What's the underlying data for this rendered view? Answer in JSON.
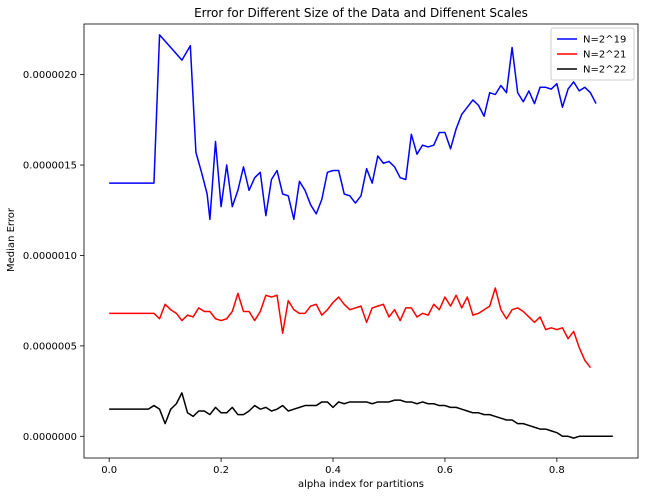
{
  "chart_data": {
    "type": "line",
    "title": "Error for Different Size of the Data and Diffenent Scales",
    "xlabel": "alpha index for partitions",
    "ylabel": "Median Error",
    "xlim": [
      -0.045,
      0.945
    ],
    "ylim": [
      -1.2e-07,
      2.28e-06
    ],
    "xticks": [
      0.0,
      0.2,
      0.4,
      0.6,
      0.8
    ],
    "xtick_labels": [
      "0.0",
      "0.2",
      "0.4",
      "0.6",
      "0.8"
    ],
    "yticks": [
      0.0,
      5e-07,
      1e-06,
      1.5e-06,
      2e-06
    ],
    "ytick_labels": [
      "0.0000000",
      "0.0000005",
      "0.0000010",
      "0.0000015",
      "0.0000020"
    ],
    "grid": false,
    "legend_position": "top-right",
    "series": [
      {
        "name": "N=2^19",
        "color": "#0000ff",
        "x": [
          0.0,
          0.01,
          0.02,
          0.03,
          0.04,
          0.05,
          0.06,
          0.07,
          0.08,
          0.09,
          0.13,
          0.145,
          0.155,
          0.165,
          0.175,
          0.18,
          0.19,
          0.2,
          0.21,
          0.22,
          0.23,
          0.24,
          0.25,
          0.26,
          0.27,
          0.28,
          0.29,
          0.3,
          0.31,
          0.32,
          0.33,
          0.34,
          0.35,
          0.36,
          0.37,
          0.38,
          0.39,
          0.4,
          0.41,
          0.42,
          0.43,
          0.44,
          0.45,
          0.46,
          0.47,
          0.48,
          0.49,
          0.5,
          0.51,
          0.52,
          0.53,
          0.54,
          0.55,
          0.56,
          0.57,
          0.58,
          0.59,
          0.6,
          0.61,
          0.62,
          0.63,
          0.64,
          0.65,
          0.66,
          0.67,
          0.68,
          0.69,
          0.7,
          0.71,
          0.72,
          0.73,
          0.74,
          0.75,
          0.76,
          0.77,
          0.78,
          0.79,
          0.8,
          0.81,
          0.82,
          0.83,
          0.84,
          0.85,
          0.86,
          0.87
        ],
        "y": [
          1.4e-06,
          1.4e-06,
          1.4e-06,
          1.4e-06,
          1.4e-06,
          1.4e-06,
          1.4e-06,
          1.4e-06,
          1.4e-06,
          2.22e-06,
          2.08e-06,
          2.16e-06,
          1.57e-06,
          1.46e-06,
          1.34e-06,
          1.2e-06,
          1.63e-06,
          1.27e-06,
          1.5e-06,
          1.27e-06,
          1.36e-06,
          1.49e-06,
          1.36e-06,
          1.43e-06,
          1.46e-06,
          1.22e-06,
          1.42e-06,
          1.47e-06,
          1.34e-06,
          1.33e-06,
          1.2e-06,
          1.41e-06,
          1.36e-06,
          1.28e-06,
          1.23e-06,
          1.31e-06,
          1.46e-06,
          1.47e-06,
          1.47e-06,
          1.34e-06,
          1.33e-06,
          1.29e-06,
          1.33e-06,
          1.48e-06,
          1.4e-06,
          1.55e-06,
          1.51e-06,
          1.52e-06,
          1.49e-06,
          1.43e-06,
          1.42e-06,
          1.67e-06,
          1.56e-06,
          1.61e-06,
          1.6e-06,
          1.61e-06,
          1.68e-06,
          1.68e-06,
          1.59e-06,
          1.7e-06,
          1.78e-06,
          1.82e-06,
          1.86e-06,
          1.83e-06,
          1.77e-06,
          1.9e-06,
          1.89e-06,
          1.94e-06,
          1.9e-06,
          2.15e-06,
          1.9e-06,
          1.85e-06,
          1.91e-06,
          1.84e-06,
          1.93e-06,
          1.93e-06,
          1.92e-06,
          1.95e-06,
          1.82e-06,
          1.92e-06,
          1.96e-06,
          1.91e-06,
          1.93e-06,
          1.9e-06,
          1.84e-06
        ]
      },
      {
        "name": "N=2^21",
        "color": "#ff0000",
        "x": [
          0.0,
          0.01,
          0.02,
          0.03,
          0.04,
          0.05,
          0.06,
          0.07,
          0.08,
          0.09,
          0.1,
          0.11,
          0.12,
          0.13,
          0.14,
          0.15,
          0.16,
          0.17,
          0.18,
          0.19,
          0.2,
          0.21,
          0.22,
          0.23,
          0.24,
          0.25,
          0.26,
          0.27,
          0.28,
          0.29,
          0.3,
          0.31,
          0.32,
          0.33,
          0.34,
          0.35,
          0.36,
          0.37,
          0.38,
          0.39,
          0.4,
          0.41,
          0.42,
          0.43,
          0.44,
          0.45,
          0.46,
          0.47,
          0.48,
          0.49,
          0.5,
          0.51,
          0.52,
          0.53,
          0.54,
          0.55,
          0.56,
          0.57,
          0.58,
          0.59,
          0.6,
          0.61,
          0.62,
          0.63,
          0.64,
          0.65,
          0.66,
          0.67,
          0.68,
          0.69,
          0.7,
          0.71,
          0.72,
          0.73,
          0.74,
          0.75,
          0.76,
          0.77,
          0.78,
          0.79,
          0.8,
          0.81,
          0.82,
          0.83,
          0.84,
          0.85,
          0.86
        ],
        "y": [
          6.8e-07,
          6.8e-07,
          6.8e-07,
          6.8e-07,
          6.8e-07,
          6.8e-07,
          6.8e-07,
          6.8e-07,
          6.8e-07,
          6.5e-07,
          7.3e-07,
          7e-07,
          6.8e-07,
          6.4e-07,
          6.7e-07,
          6.6e-07,
          7.1e-07,
          6.9e-07,
          6.9e-07,
          6.5e-07,
          6.4e-07,
          6.5e-07,
          6.9e-07,
          7.9e-07,
          6.9e-07,
          6.9e-07,
          6.4e-07,
          6.9e-07,
          7.8e-07,
          7.7e-07,
          7.8e-07,
          5.7e-07,
          7.5e-07,
          7e-07,
          6.8e-07,
          6.8e-07,
          7.2e-07,
          7.3e-07,
          6.7e-07,
          7e-07,
          7.4e-07,
          7.7e-07,
          7.3e-07,
          7e-07,
          7.1e-07,
          7.2e-07,
          6.3e-07,
          7.1e-07,
          7.2e-07,
          7.3e-07,
          6.6e-07,
          7e-07,
          6.4e-07,
          7.1e-07,
          7.1e-07,
          6.6e-07,
          6.8e-07,
          6.7e-07,
          7.3e-07,
          7e-07,
          7.7e-07,
          7.2e-07,
          7.8e-07,
          7.1e-07,
          7.7e-07,
          6.7e-07,
          6.8e-07,
          7e-07,
          7.2e-07,
          8.2e-07,
          7e-07,
          6.5e-07,
          7e-07,
          7.1e-07,
          6.9e-07,
          6.6e-07,
          6.3e-07,
          6.6e-07,
          5.9e-07,
          6e-07,
          5.9e-07,
          6e-07,
          5.4e-07,
          5.8e-07,
          4.9e-07,
          4.2e-07,
          3.8e-07
        ]
      },
      {
        "name": "N=2^22",
        "color": "#000000",
        "x": [
          0.0,
          0.01,
          0.02,
          0.03,
          0.04,
          0.05,
          0.06,
          0.07,
          0.08,
          0.09,
          0.1,
          0.11,
          0.12,
          0.13,
          0.14,
          0.15,
          0.16,
          0.17,
          0.18,
          0.19,
          0.2,
          0.21,
          0.22,
          0.23,
          0.24,
          0.25,
          0.26,
          0.27,
          0.28,
          0.29,
          0.3,
          0.31,
          0.32,
          0.33,
          0.34,
          0.35,
          0.36,
          0.37,
          0.38,
          0.39,
          0.4,
          0.41,
          0.42,
          0.43,
          0.44,
          0.45,
          0.46,
          0.47,
          0.48,
          0.49,
          0.5,
          0.51,
          0.52,
          0.53,
          0.54,
          0.55,
          0.56,
          0.57,
          0.58,
          0.59,
          0.6,
          0.61,
          0.62,
          0.63,
          0.64,
          0.65,
          0.66,
          0.67,
          0.68,
          0.69,
          0.7,
          0.71,
          0.72,
          0.73,
          0.74,
          0.75,
          0.76,
          0.77,
          0.78,
          0.79,
          0.8,
          0.81,
          0.82,
          0.83,
          0.84,
          0.85,
          0.86,
          0.87,
          0.88,
          0.89,
          0.9
        ],
        "y": [
          1.5e-07,
          1.5e-07,
          1.5e-07,
          1.5e-07,
          1.5e-07,
          1.5e-07,
          1.5e-07,
          1.5e-07,
          1.7e-07,
          1.5e-07,
          7e-08,
          1.5e-07,
          1.8e-07,
          2.4e-07,
          1.3e-07,
          1.1e-07,
          1.4e-07,
          1.4e-07,
          1.2e-07,
          1.6e-07,
          1.3e-07,
          1.3e-07,
          1.6e-07,
          1.2e-07,
          1.2e-07,
          1.4e-07,
          1.7e-07,
          1.5e-07,
          1.6e-07,
          1.4e-07,
          1.5e-07,
          1.7e-07,
          1.4e-07,
          1.5e-07,
          1.6e-07,
          1.7e-07,
          1.7e-07,
          1.7e-07,
          1.9e-07,
          1.9e-07,
          1.6e-07,
          1.9e-07,
          1.8e-07,
          1.9e-07,
          1.9e-07,
          1.9e-07,
          1.9e-07,
          1.8e-07,
          1.9e-07,
          1.9e-07,
          1.9e-07,
          2e-07,
          2e-07,
          1.9e-07,
          1.9e-07,
          1.8e-07,
          1.9e-07,
          1.8e-07,
          1.8e-07,
          1.7e-07,
          1.7e-07,
          1.6e-07,
          1.6e-07,
          1.5e-07,
          1.4e-07,
          1.3e-07,
          1.3e-07,
          1.2e-07,
          1.2e-07,
          1.1e-07,
          1e-07,
          9e-08,
          9e-08,
          7e-08,
          7e-08,
          6e-08,
          5e-08,
          4e-08,
          4e-08,
          3e-08,
          2e-08,
          0.0,
          0.0,
          -1e-08,
          0.0,
          0.0,
          0.0,
          0.0,
          0.0,
          0.0,
          0.0
        ]
      }
    ]
  }
}
